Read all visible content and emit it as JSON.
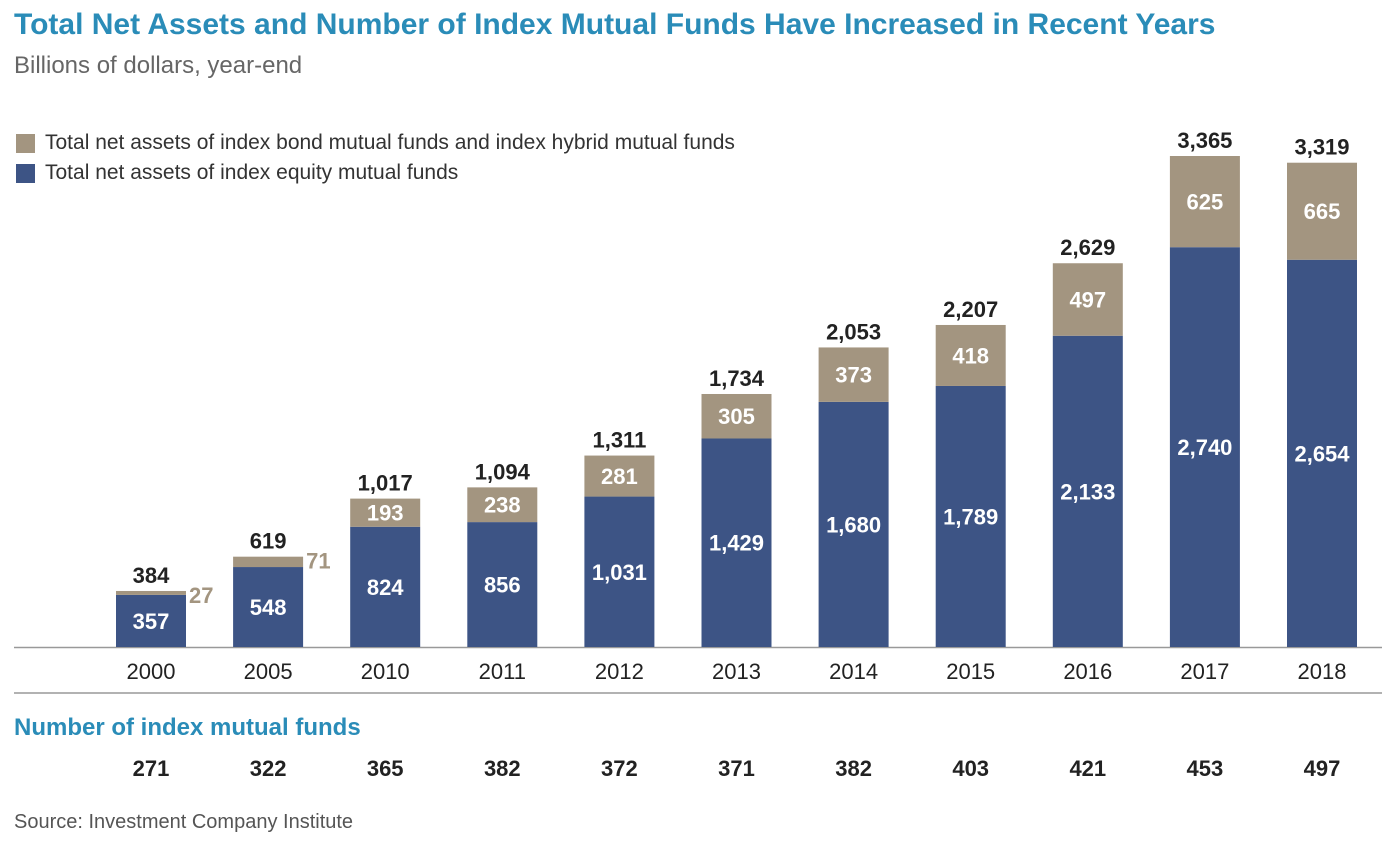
{
  "title": "Total Net Assets and Number of Index Mutual Funds Have Increased in Recent Years",
  "subtitle": "Billions of dollars, year-end",
  "legend": [
    {
      "label": "Total net assets of index bond mutual funds and index hybrid mutual funds",
      "color": "#a39580"
    },
    {
      "label": "Total net assets of index equity mutual funds",
      "color": "#3d5485"
    }
  ],
  "funds_section_title": "Number of index mutual funds",
  "source": "Source: Investment Company Institute",
  "colors": {
    "title": "#2a8cb8",
    "equity": "#3d5485",
    "bond_hybrid": "#a39580",
    "total_label": "#222222",
    "inside_label": "#ffffff",
    "axis": "#999999"
  },
  "chart_data": {
    "type": "bar",
    "stacked": true,
    "categories": [
      "2000",
      "2005",
      "2010",
      "2011",
      "2012",
      "2013",
      "2014",
      "2015",
      "2016",
      "2017",
      "2018"
    ],
    "series": [
      {
        "name": "Total net assets of index equity mutual funds",
        "values": [
          357,
          548,
          824,
          856,
          1031,
          1429,
          1680,
          1789,
          2133,
          2740,
          2654
        ],
        "labels": [
          "357",
          "548",
          "824",
          "856",
          "1,031",
          "1,429",
          "1,680",
          "1,789",
          "2,133",
          "2,740",
          "2,654"
        ]
      },
      {
        "name": "Total net assets of index bond mutual funds and index hybrid mutual funds",
        "values": [
          27,
          71,
          193,
          238,
          281,
          305,
          373,
          418,
          497,
          625,
          665
        ],
        "labels": [
          "27",
          "71",
          "193",
          "238",
          "281",
          "305",
          "373",
          "418",
          "497",
          "625",
          "665"
        ]
      }
    ],
    "totals": [
      384,
      619,
      1017,
      1094,
      1311,
      1734,
      2053,
      2207,
      2629,
      3365,
      3319
    ],
    "total_labels": [
      "384",
      "619",
      "1,017",
      "1,094",
      "1,311",
      "1,734",
      "2,053",
      "2,207",
      "2,629",
      "3,365",
      "3,319"
    ],
    "ylim": [
      0,
      3365
    ],
    "grid": false,
    "legend_position": "top-left",
    "number_of_funds": [
      "271",
      "322",
      "365",
      "382",
      "372",
      "371",
      "382",
      "403",
      "421",
      "453",
      "497"
    ]
  }
}
